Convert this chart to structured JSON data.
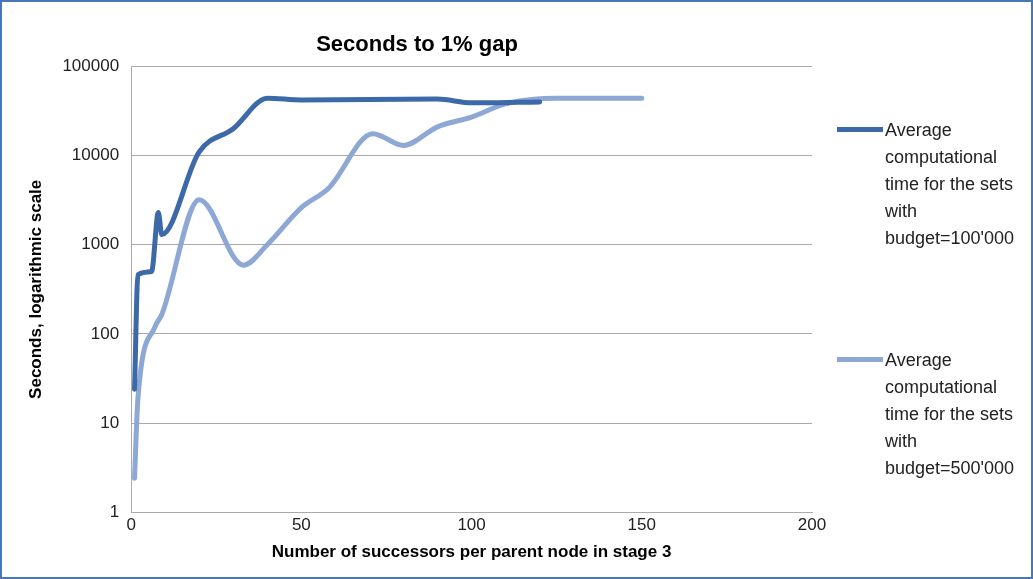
{
  "chart_data": {
    "type": "line",
    "title": "Seconds to 1% gap",
    "xlabel": "Number of successors per parent node in stage 3",
    "ylabel": "Seconds, logarithmic scale",
    "series": [
      {
        "name": "Average computational time for the sets with budget=100'000",
        "color": "#3c6aa8",
        "x": [
          1,
          2,
          6,
          8,
          9,
          20,
          30,
          40,
          50,
          90,
          100,
          120
        ],
        "values": [
          24,
          460,
          500,
          2300,
          1300,
          11000,
          20000,
          44000,
          42000,
          43000,
          39000,
          40000
        ]
      },
      {
        "name": "Average computational time for the sets with budget=500'000",
        "color": "#8ea8d6",
        "x": [
          1,
          2,
          7,
          9,
          20,
          33,
          40,
          50,
          58,
          71,
          80,
          90,
          100,
          110,
          125,
          150
        ],
        "values": [
          2.4,
          19,
          120,
          165,
          3200,
          590,
          1000,
          2600,
          4300,
          17600,
          13000,
          21000,
          27000,
          38000,
          44000,
          44000
        ]
      }
    ],
    "xlim": [
      0,
      200
    ],
    "xticks": [
      0,
      50,
      100,
      150,
      200
    ],
    "ylim": [
      1,
      100000
    ],
    "yticks": [
      1,
      10,
      100,
      1000,
      10000,
      100000
    ],
    "log": true,
    "grid": "y",
    "legend": "right",
    "marker": "none",
    "line_style": "solid"
  }
}
